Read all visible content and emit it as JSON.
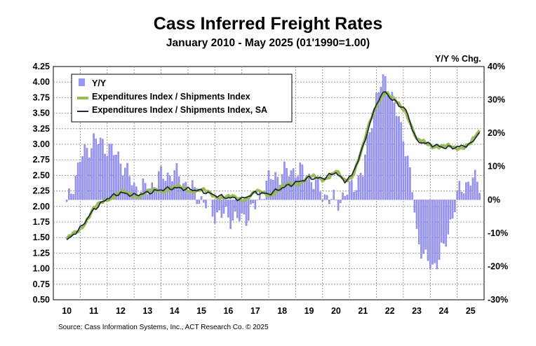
{
  "chart_data": {
    "type": "line",
    "title": "Cass Inferred Freight Rates",
    "subtitle": "January 2010 - May 2025 (01'1990=1.00)",
    "right_axis_label": "Y/Y % Chg.",
    "source": "Source: Cass Information Systems, Inc., ACT Research Co. © 2025",
    "left_ylim": [
      0.5,
      4.25
    ],
    "left_yticks": [
      "4.25",
      "4.00",
      "3.75",
      "3.50",
      "3.25",
      "3.00",
      "2.75",
      "2.50",
      "2.25",
      "2.00",
      "1.75",
      "1.50",
      "1.25",
      "1.00",
      "0.75",
      "0.50"
    ],
    "right_ylim": [
      -30,
      40
    ],
    "right_yticks": [
      "40%",
      "30%",
      "20%",
      "10%",
      "0%",
      "-10%",
      "-20%",
      "-30%"
    ],
    "x_categories": [
      "10",
      "11",
      "12",
      "13",
      "14",
      "15",
      "16",
      "17",
      "18",
      "19",
      "20",
      "21",
      "22",
      "23",
      "24",
      "25"
    ],
    "grid": true,
    "legend_position": "top-left",
    "colors": {
      "yy_bars": "#9896f0",
      "expenditures_index": "#9bbb59",
      "expenditures_index_sa": "#1f2d3d",
      "grid": "#999999"
    },
    "legend": [
      "Y/Y",
      "Expenditures Index / Shipments Index",
      "Expenditures Index / Shipments Index, SA"
    ],
    "annual_keypoints": {
      "x": [
        2010.0,
        2010.5,
        2011.0,
        2011.5,
        2012.0,
        2012.5,
        2013.0,
        2013.5,
        2014.0,
        2014.5,
        2015.0,
        2015.5,
        2016.0,
        2016.5,
        2017.0,
        2017.5,
        2018.0,
        2018.5,
        2019.0,
        2019.5,
        2020.0,
        2020.3,
        2020.6,
        2021.0,
        2021.3,
        2021.6,
        2021.85,
        2022.0,
        2022.3,
        2022.6,
        2023.0,
        2023.5,
        2024.0,
        2024.4,
        2024.7,
        2025.0,
        2025.33
      ],
      "index": [
        1.45,
        1.65,
        1.95,
        2.13,
        2.22,
        2.18,
        2.22,
        2.27,
        2.3,
        2.28,
        2.25,
        2.18,
        2.14,
        2.12,
        2.22,
        2.2,
        2.3,
        2.38,
        2.46,
        2.45,
        2.55,
        2.4,
        2.5,
        2.95,
        3.4,
        3.75,
        3.85,
        3.75,
        3.65,
        3.55,
        3.05,
        3.0,
        2.95,
        2.95,
        2.97,
        3.0,
        3.2
      ]
    },
    "yy_pct_keypoints": {
      "x": [
        2010.0,
        2010.5,
        2011.0,
        2011.5,
        2012.0,
        2012.5,
        2013.0,
        2013.5,
        2014.0,
        2014.5,
        2015.0,
        2015.5,
        2016.0,
        2016.5,
        2017.0,
        2017.5,
        2018.0,
        2018.5,
        2019.0,
        2019.5,
        2020.0,
        2020.5,
        2021.0,
        2021.3,
        2021.6,
        2021.85,
        2022.0,
        2022.5,
        2022.85,
        2023.0,
        2023.3,
        2023.6,
        2024.0,
        2024.3,
        2024.6,
        2025.0,
        2025.33
      ],
      "value": [
        -2,
        12,
        18,
        16,
        12,
        4,
        3,
        7,
        8,
        4,
        0,
        -4,
        -5,
        -6,
        -2,
        6,
        8,
        9,
        7,
        2,
        -1,
        3,
        8,
        24,
        33,
        37,
        32,
        20,
        2,
        -10,
        -18,
        -20,
        -15,
        -5,
        3,
        6,
        5
      ]
    }
  }
}
